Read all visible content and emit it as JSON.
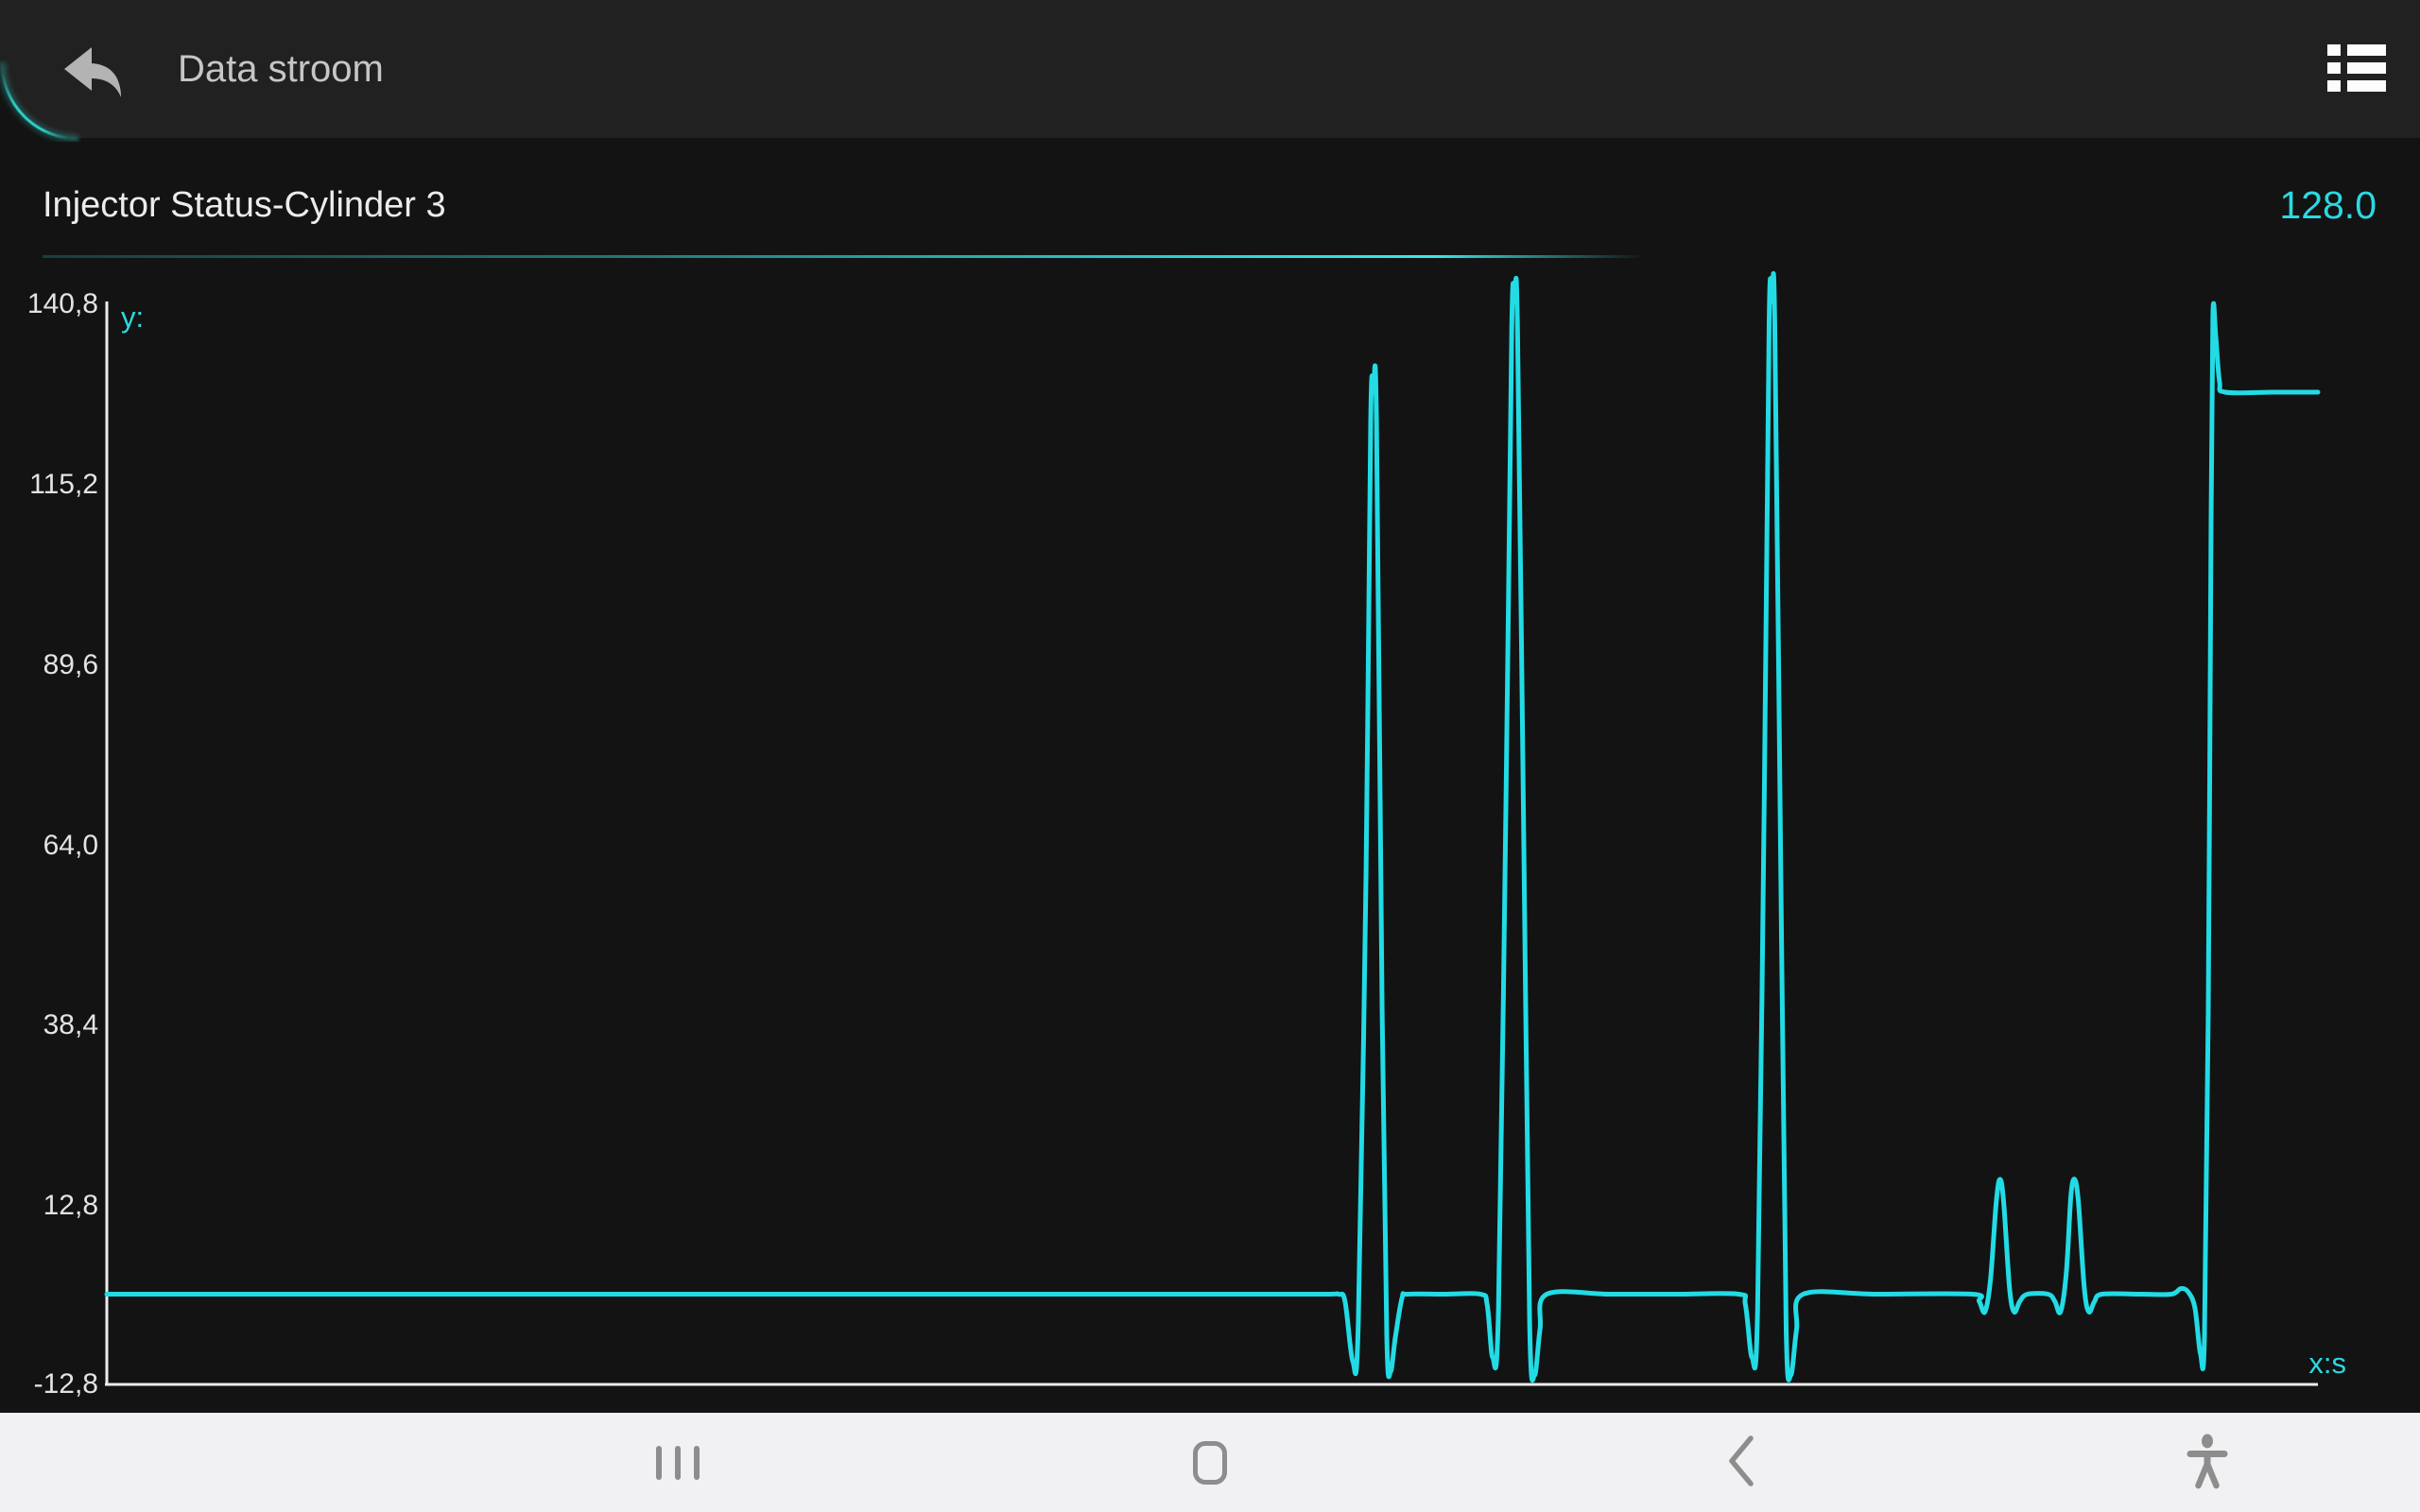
{
  "header": {
    "title": "Data stroom",
    "icons": {
      "back": "reply-arrow-icon",
      "menu": "list-menu-icon"
    }
  },
  "parameter": {
    "name": "Injector Status-Cylinder 3",
    "value": "128.0"
  },
  "chart_data": {
    "type": "line",
    "title": "Injector Status-Cylinder 3",
    "series_name": "Injector Status-Cylinder 3",
    "current_value": 128.0,
    "xlabel": "x:s",
    "ylabel": "y:",
    "x_ticks": [],
    "y_ticks": [
      "140,8",
      "115,2",
      "89,6",
      "64,0",
      "38,4",
      "12,8",
      "-12,8"
    ],
    "y_tick_values": [
      140.8,
      115.2,
      89.6,
      64.0,
      38.4,
      12.8,
      -12.8
    ],
    "ylim": [
      -12.8,
      140.8
    ],
    "grid": false,
    "legend": false,
    "line_color": "#22dbe5",
    "axis_color": "#ececec",
    "accent_color": "#2bd9e2",
    "x_normalized": true,
    "points": [
      [
        0.0,
        0
      ],
      [
        0.1,
        0
      ],
      [
        0.2,
        0
      ],
      [
        0.3,
        0
      ],
      [
        0.4,
        0
      ],
      [
        0.5,
        0
      ],
      [
        0.55,
        0
      ],
      [
        0.557,
        0
      ],
      [
        0.56,
        -1
      ],
      [
        0.5635,
        -9.5
      ],
      [
        0.566,
        -4
      ],
      [
        0.5695,
        60
      ],
      [
        0.5716,
        124
      ],
      [
        0.5729,
        128
      ],
      [
        0.5742,
        124
      ],
      [
        0.5768,
        40
      ],
      [
        0.5789,
        -6
      ],
      [
        0.5806,
        -11
      ],
      [
        0.5828,
        -6
      ],
      [
        0.5858,
        -0.5
      ],
      [
        0.5883,
        0
      ],
      [
        0.605,
        0
      ],
      [
        0.6213,
        0
      ],
      [
        0.6243,
        -1.5
      ],
      [
        0.6268,
        -9
      ],
      [
        0.6294,
        -2
      ],
      [
        0.6328,
        70
      ],
      [
        0.6354,
        137
      ],
      [
        0.6367,
        140.8
      ],
      [
        0.638,
        137
      ],
      [
        0.641,
        60
      ],
      [
        0.6435,
        -4
      ],
      [
        0.6457,
        -11.5
      ],
      [
        0.6482,
        -5
      ],
      [
        0.6512,
        0
      ],
      [
        0.68,
        0
      ],
      [
        0.71,
        0
      ],
      [
        0.7381,
        0
      ],
      [
        0.7411,
        -1.5
      ],
      [
        0.7441,
        -9
      ],
      [
        0.7466,
        -2
      ],
      [
        0.7496,
        70
      ],
      [
        0.7518,
        138
      ],
      [
        0.7531,
        140.8
      ],
      [
        0.7544,
        137
      ],
      [
        0.7574,
        50
      ],
      [
        0.7595,
        -5
      ],
      [
        0.7616,
        -11.5
      ],
      [
        0.7642,
        -5
      ],
      [
        0.7672,
        0
      ],
      [
        0.8,
        0
      ],
      [
        0.8438,
        0
      ],
      [
        0.8468,
        -1
      ],
      [
        0.8494,
        -2.5
      ],
      [
        0.8519,
        2
      ],
      [
        0.8545,
        13
      ],
      [
        0.8562,
        16.3
      ],
      [
        0.8579,
        13
      ],
      [
        0.8605,
        1
      ],
      [
        0.8626,
        -2.5
      ],
      [
        0.8652,
        -1
      ],
      [
        0.8686,
        0
      ],
      [
        0.878,
        0
      ],
      [
        0.881,
        -1
      ],
      [
        0.8836,
        -2.5
      ],
      [
        0.8862,
        3
      ],
      [
        0.8883,
        14
      ],
      [
        0.89,
        16.3
      ],
      [
        0.8917,
        13
      ],
      [
        0.8943,
        1
      ],
      [
        0.8964,
        -2.5
      ],
      [
        0.899,
        -1
      ],
      [
        0.9024,
        0
      ],
      [
        0.92,
        0
      ],
      [
        0.9337,
        0
      ],
      [
        0.938,
        0.8
      ],
      [
        0.9414,
        0.3
      ],
      [
        0.9444,
        -2
      ],
      [
        0.9469,
        -8.5
      ],
      [
        0.9487,
        -6
      ],
      [
        0.9504,
        40
      ],
      [
        0.9517,
        110
      ],
      [
        0.9525,
        139
      ],
      [
        0.9538,
        136
      ],
      [
        0.9555,
        129.5
      ],
      [
        0.9581,
        128
      ],
      [
        0.98,
        128
      ],
      [
        1.0,
        128
      ]
    ]
  },
  "navbar": {
    "items": [
      {
        "name": "recents",
        "icon": "recents-icon"
      },
      {
        "name": "home",
        "icon": "home-icon"
      },
      {
        "name": "back",
        "icon": "back-chevron-icon"
      },
      {
        "name": "accessibility",
        "icon": "accessibility-icon"
      }
    ]
  }
}
